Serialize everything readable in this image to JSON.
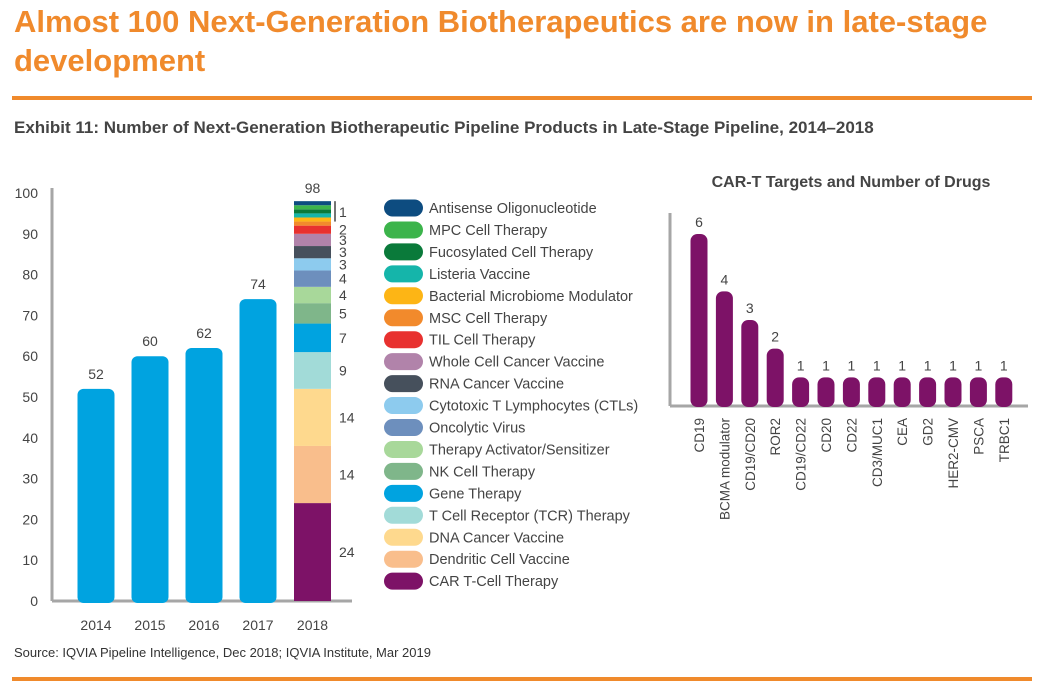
{
  "header": {
    "title": "Almost 100 Next-Generation Biotherapeutics are now in late-stage development",
    "exhibit": "Exhibit 11: Number of Next-Generation Biotherapeutic Pipeline Products in Late-Stage Pipeline, 2014–2018"
  },
  "footer": {
    "source": "Source: IQVIA Pipeline Intelligence, Dec 2018; IQVIA Institute, Mar 2019"
  },
  "chart_data": [
    {
      "type": "bar",
      "title": "",
      "categories": [
        "2014",
        "2015",
        "2016",
        "2017"
      ],
      "values": [
        52,
        60,
        62,
        74
      ],
      "ylim": [
        0,
        100
      ],
      "yticks": [
        0,
        10,
        20,
        30,
        40,
        50,
        60,
        70,
        80,
        90,
        100
      ],
      "color": "#00a3e0",
      "stacked_category": "2018",
      "stacked_total": 98,
      "stacked_total_label": "98",
      "stacked_series": [
        {
          "name": "CAR T-Cell Therapy",
          "value": 24,
          "color": "#7d1267"
        },
        {
          "name": "Dendritic Cell Vaccine",
          "value": 14,
          "color": "#f9be8c"
        },
        {
          "name": "DNA Cancer Vaccine",
          "value": 14,
          "color": "#fed98e"
        },
        {
          "name": "T Cell Receptor (TCR) Therapy",
          "value": 9,
          "color": "#a2dbd8"
        },
        {
          "name": "Gene Therapy",
          "value": 7,
          "color": "#00a3e0"
        },
        {
          "name": "NK Cell Therapy",
          "value": 5,
          "color": "#7fb68a"
        },
        {
          "name": "Therapy Activator/Sensitizer",
          "value": 4,
          "color": "#a8d89a"
        },
        {
          "name": "Oncolytic Virus",
          "value": 4,
          "color": "#6d8fbd"
        },
        {
          "name": "Cytotoxic T Lymphocytes (CTLs)",
          "value": 3,
          "color": "#8dcbee"
        },
        {
          "name": "RNA Cancer Vaccine",
          "value": 3,
          "color": "#46505c"
        },
        {
          "name": "Whole Cell Cancer Vaccine",
          "value": 3,
          "color": "#b183aa"
        },
        {
          "name": "TIL Cell Therapy",
          "value": 2,
          "color": "#e8312f"
        },
        {
          "name": "MSC Cell Therapy",
          "value": 1,
          "color": "#f28a2c"
        },
        {
          "name": "Bacterial Microbiome Modulator",
          "value": 1,
          "color": "#fdb515"
        },
        {
          "name": "Listeria Vaccine",
          "value": 1,
          "color": "#15b5aa"
        },
        {
          "name": "Fucosylated Cell Therapy",
          "value": 1,
          "color": "#0a7a3a"
        },
        {
          "name": "MPC Cell Therapy",
          "value": 1,
          "color": "#3cb44b"
        },
        {
          "name": "Antisense Oligonucleotide",
          "value": 1,
          "color": "#0d4c80"
        }
      ],
      "side_labels": [
        "24",
        "14",
        "14",
        "9",
        "7",
        "5",
        "4",
        "4",
        "3",
        "3",
        "3",
        "2",
        "1"
      ],
      "legend_order": [
        "Antisense Oligonucleotide",
        "MPC Cell Therapy",
        "Fucosylated Cell Therapy",
        "Listeria Vaccine",
        "Bacterial Microbiome Modulator",
        "MSC Cell Therapy",
        "TIL Cell Therapy",
        "Whole Cell Cancer Vaccine",
        "RNA Cancer Vaccine",
        "Cytotoxic T Lymphocytes (CTLs)",
        "Oncolytic Virus",
        "Therapy Activator/Sensitizer",
        "NK Cell Therapy",
        "Gene Therapy",
        "T Cell Receptor (TCR) Therapy",
        "DNA Cancer Vaccine",
        "Dendritic Cell Vaccine",
        "CAR T-Cell Therapy"
      ]
    },
    {
      "type": "bar",
      "title": "CAR-T Targets and Number of Drugs",
      "categories": [
        "CD19",
        "BCMA modulator",
        "CD19/CD20",
        "ROR2",
        "CD19/CD22",
        "CD20",
        "CD22",
        "CD3/MUC1",
        "CEA",
        "GD2",
        "HER2-CMV",
        "PSCA",
        "TRBC1"
      ],
      "values": [
        6,
        4,
        3,
        2,
        1,
        1,
        1,
        1,
        1,
        1,
        1,
        1,
        1
      ],
      "ylim": [
        0,
        6
      ],
      "color": "#7d1267"
    }
  ]
}
